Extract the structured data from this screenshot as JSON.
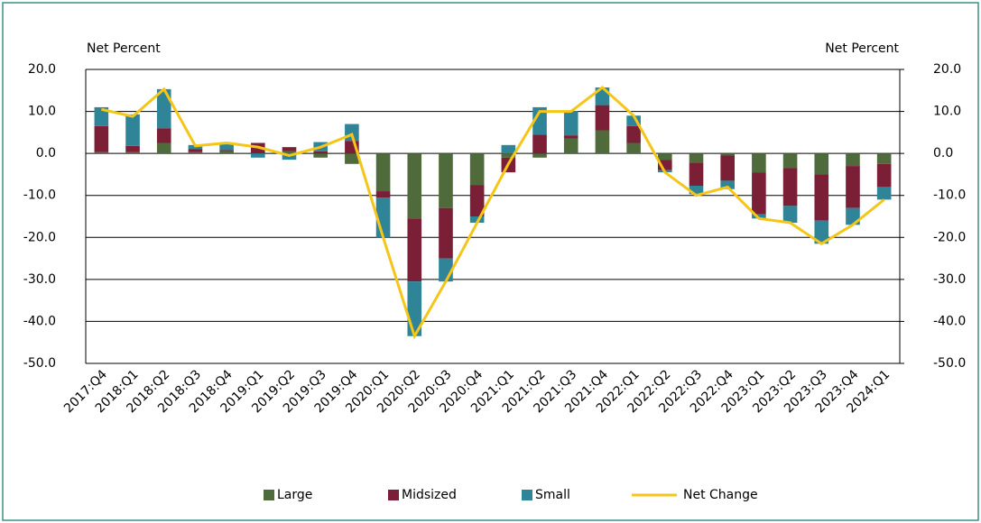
{
  "chart_data": {
    "type": "bar",
    "stacked": true,
    "y_label": "Net Percent",
    "y2_label": "Net Percent",
    "categories": [
      "2017:Q4",
      "2018:Q1",
      "2018:Q2",
      "2018:Q3",
      "2018:Q4",
      "2019:Q1",
      "2019:Q2",
      "2019:Q3",
      "2019:Q4",
      "2020:Q1",
      "2020:Q2",
      "2020:Q3",
      "2020:Q4",
      "2021:Q1",
      "2021:Q2",
      "2021:Q3",
      "2021:Q4",
      "2022:Q1",
      "2022:Q2",
      "2022:Q3",
      "2022:Q4",
      "2023:Q1",
      "2023:Q2",
      "2023:Q3",
      "2023:Q4",
      "2024:Q1"
    ],
    "series": [
      {
        "name": "Large",
        "type": "bar",
        "color": "#4f6b3c",
        "values": [
          0.3,
          0.3,
          2.5,
          0.3,
          0.5,
          0,
          0.5,
          -1,
          -2.5,
          -9,
          -15.5,
          -13,
          -7.5,
          -1,
          -1,
          3.5,
          5.5,
          2.5,
          -1.5,
          -2.2,
          -0.5,
          -4.5,
          -3.5,
          -5,
          -3,
          -2.5
        ]
      },
      {
        "name": "Midsized",
        "type": "bar",
        "color": "#7a1f36",
        "values": [
          6.2,
          1.5,
          3.5,
          0.7,
          0.3,
          2.5,
          1,
          0.5,
          3,
          -1.5,
          -15,
          -12,
          -7.5,
          -3.5,
          4.5,
          0.8,
          6,
          4,
          -2.5,
          -5.5,
          -6,
          -10,
          -9,
          -11,
          -10,
          -5.5
        ]
      },
      {
        "name": "Small",
        "type": "bar",
        "color": "#2f8597",
        "values": [
          4.5,
          7.5,
          9.3,
          1,
          1.5,
          -1,
          -1.5,
          2.2,
          4,
          -9.5,
          -13,
          -5.5,
          -1.5,
          2,
          6.5,
          5.8,
          4.2,
          2.5,
          -0.5,
          -2,
          -2,
          -1,
          -4,
          -5.5,
          -4,
          -3
        ]
      },
      {
        "name": "Net Change",
        "type": "line",
        "color": "#f5c518",
        "values": [
          10.5,
          8.8,
          15.3,
          1.8,
          2.5,
          1.5,
          -0.5,
          1.5,
          4.5,
          -20,
          -43.5,
          -30.5,
          -16.5,
          -2.5,
          10,
          10,
          15.7,
          9,
          -4.5,
          -10,
          -8,
          -15.5,
          -16.5,
          -21.5,
          -17,
          -11
        ]
      }
    ],
    "ylim": [
      -50,
      20
    ],
    "yticks": [
      {
        "value": -50,
        "label": "-50.0"
      },
      {
        "value": -40,
        "label": "-40.0"
      },
      {
        "value": -30,
        "label": "-30.0"
      },
      {
        "value": -20,
        "label": "-20.0"
      },
      {
        "value": -10,
        "label": "-10.0"
      },
      {
        "value": 0,
        "label": "0.0"
      },
      {
        "value": 10,
        "label": "10.0"
      },
      {
        "value": 20,
        "label": "20.0"
      }
    ],
    "y2lim": [
      -50,
      20
    ],
    "y2ticks": [
      {
        "value": -50,
        "label": "-50.0"
      },
      {
        "value": -40,
        "label": "-40.0"
      },
      {
        "value": -30,
        "label": "-30.0"
      },
      {
        "value": -20,
        "label": "-20.0"
      },
      {
        "value": -10,
        "label": "-10.0"
      },
      {
        "value": 0,
        "label": "0.0"
      },
      {
        "value": 10,
        "label": "10.0"
      },
      {
        "value": 20,
        "label": "20.0"
      }
    ],
    "grid": true
  }
}
